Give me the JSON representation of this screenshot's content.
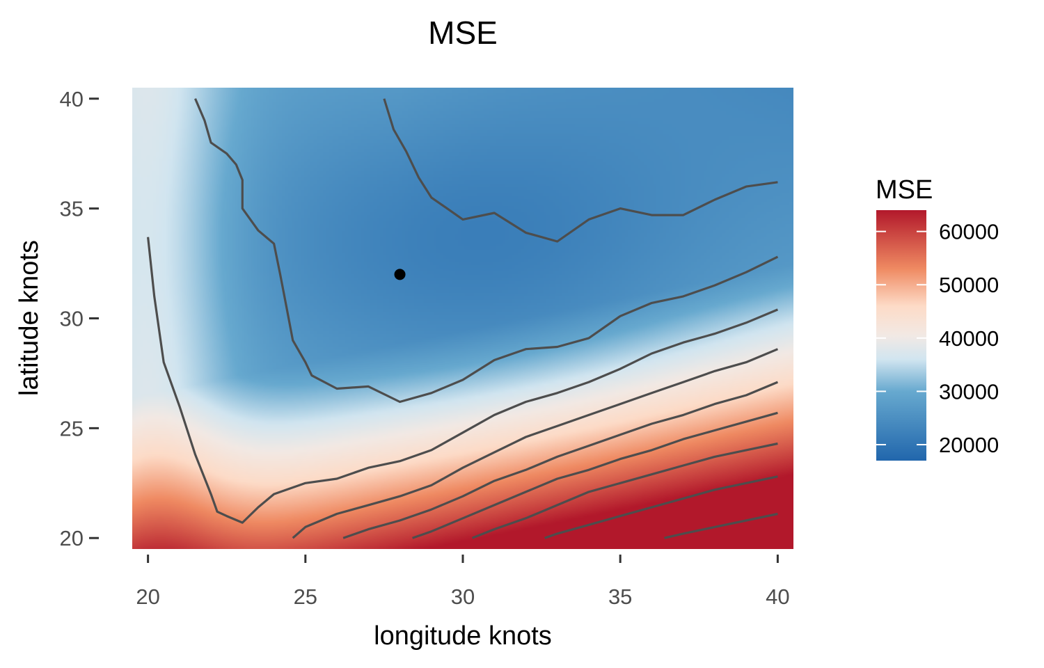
{
  "chart_data": {
    "type": "heatmap",
    "title": "MSE",
    "xlabel": "longitude knots",
    "ylabel": "latitude knots",
    "xlim": [
      19.5,
      40.5
    ],
    "ylim": [
      19.5,
      40.5
    ],
    "x_ticks": [
      20,
      25,
      30,
      35,
      40
    ],
    "y_ticks": [
      20,
      25,
      30,
      35,
      40
    ],
    "grid": false,
    "legend": {
      "title": "MSE",
      "position": "right",
      "range": [
        17000,
        64000
      ],
      "ticks": [
        20000,
        30000,
        40000,
        50000,
        60000
      ],
      "colors": [
        {
          "value": 17000,
          "color": "#2166ac"
        },
        {
          "value": 30000,
          "color": "#67a9cf"
        },
        {
          "value": 36000,
          "color": "#d1e5f0"
        },
        {
          "value": 40500,
          "color": "#f2e9e4"
        },
        {
          "value": 46000,
          "color": "#fddbc7"
        },
        {
          "value": 53000,
          "color": "#ef8a62"
        },
        {
          "value": 64000,
          "color": "#b2182b"
        }
      ]
    },
    "minimum_point": {
      "x": 28,
      "y": 32,
      "color": "#000000"
    },
    "contour_color": "#4d4d4d",
    "contours": [
      [
        [
          27.5,
          40
        ],
        [
          27.8,
          38.6
        ],
        [
          28.2,
          37.6
        ],
        [
          28.6,
          36.4
        ],
        [
          29,
          35.5
        ],
        [
          29.5,
          35
        ],
        [
          30,
          34.5
        ],
        [
          31,
          34.8
        ],
        [
          32,
          33.9
        ],
        [
          33,
          33.5
        ],
        [
          34,
          34.5
        ],
        [
          35,
          35
        ],
        [
          36,
          34.7
        ],
        [
          37,
          34.7
        ],
        [
          38,
          35.4
        ],
        [
          39,
          36
        ],
        [
          40,
          36.2
        ]
      ],
      [
        [
          21.5,
          40
        ],
        [
          21.8,
          39
        ],
        [
          22,
          38
        ],
        [
          22.5,
          37.5
        ],
        [
          22.8,
          37
        ],
        [
          23,
          36.3
        ],
        [
          23,
          35
        ],
        [
          23.5,
          34
        ],
        [
          24,
          33.4
        ],
        [
          24.2,
          32
        ],
        [
          24.4,
          30.5
        ],
        [
          24.6,
          29
        ],
        [
          25,
          28
        ],
        [
          25.2,
          27.4
        ],
        [
          26,
          26.8
        ],
        [
          27,
          26.9
        ],
        [
          28,
          26.2
        ],
        [
          29,
          26.6
        ],
        [
          30,
          27.2
        ],
        [
          31,
          28.1
        ],
        [
          32,
          28.6
        ],
        [
          33,
          28.7
        ],
        [
          34,
          29.1
        ],
        [
          35,
          30.1
        ],
        [
          36,
          30.7
        ],
        [
          37,
          31
        ],
        [
          38,
          31.5
        ],
        [
          39,
          32.1
        ],
        [
          40,
          32.8
        ]
      ],
      [
        [
          20,
          33.7
        ],
        [
          20.2,
          31
        ],
        [
          20.5,
          28
        ],
        [
          21,
          26
        ],
        [
          21.5,
          23.8
        ],
        [
          22,
          22
        ],
        [
          22.2,
          21.2
        ],
        [
          22.5,
          21
        ],
        [
          23,
          20.7
        ],
        [
          23.5,
          21.4
        ],
        [
          24,
          22
        ],
        [
          25,
          22.5
        ],
        [
          26,
          22.7
        ],
        [
          27,
          23.2
        ],
        [
          28,
          23.5
        ],
        [
          29,
          24
        ],
        [
          30,
          24.8
        ],
        [
          31,
          25.6
        ],
        [
          32,
          26.2
        ],
        [
          33,
          26.6
        ],
        [
          34,
          27.1
        ],
        [
          35,
          27.7
        ],
        [
          36,
          28.4
        ],
        [
          37,
          28.9
        ],
        [
          38,
          29.3
        ],
        [
          39,
          29.8
        ],
        [
          40,
          30.4
        ]
      ],
      [
        [
          24.6,
          20
        ],
        [
          25,
          20.5
        ],
        [
          26,
          21.1
        ],
        [
          27,
          21.5
        ],
        [
          28,
          21.9
        ],
        [
          29,
          22.4
        ],
        [
          30,
          23.2
        ],
        [
          31,
          23.9
        ],
        [
          32,
          24.6
        ],
        [
          33,
          25.1
        ],
        [
          34,
          25.6
        ],
        [
          35,
          26.1
        ],
        [
          36,
          26.6
        ],
        [
          37,
          27.1
        ],
        [
          38,
          27.6
        ],
        [
          39,
          28
        ],
        [
          40,
          28.6
        ]
      ],
      [
        [
          26.2,
          20
        ],
        [
          27,
          20.4
        ],
        [
          28,
          20.8
        ],
        [
          29,
          21.3
        ],
        [
          30,
          21.9
        ],
        [
          31,
          22.6
        ],
        [
          32,
          23.1
        ],
        [
          33,
          23.7
        ],
        [
          34,
          24.2
        ],
        [
          35,
          24.7
        ],
        [
          36,
          25.2
        ],
        [
          37,
          25.6
        ],
        [
          38,
          26.1
        ],
        [
          39,
          26.5
        ],
        [
          40,
          27.1
        ]
      ],
      [
        [
          28.4,
          20
        ],
        [
          29,
          20.3
        ],
        [
          30,
          20.9
        ],
        [
          31,
          21.5
        ],
        [
          32,
          22.1
        ],
        [
          33,
          22.7
        ],
        [
          34,
          23.1
        ],
        [
          35,
          23.6
        ],
        [
          36,
          24
        ],
        [
          37,
          24.5
        ],
        [
          38,
          24.9
        ],
        [
          39,
          25.3
        ],
        [
          40,
          25.7
        ]
      ],
      [
        [
          30.3,
          20
        ],
        [
          31,
          20.4
        ],
        [
          32,
          20.9
        ],
        [
          33,
          21.5
        ],
        [
          34,
          22.1
        ],
        [
          35,
          22.5
        ],
        [
          36,
          22.9
        ],
        [
          37,
          23.3
        ],
        [
          38,
          23.7
        ],
        [
          39,
          24
        ],
        [
          40,
          24.3
        ]
      ],
      [
        [
          32.6,
          20
        ],
        [
          33,
          20.2
        ],
        [
          34,
          20.6
        ],
        [
          35,
          21
        ],
        [
          36,
          21.4
        ],
        [
          37,
          21.8
        ],
        [
          38,
          22.2
        ],
        [
          39,
          22.5
        ],
        [
          40,
          22.8
        ]
      ],
      [
        [
          36.4,
          20
        ],
        [
          37,
          20.2
        ],
        [
          38,
          20.5
        ],
        [
          39,
          20.8
        ],
        [
          40,
          21.1
        ]
      ]
    ]
  }
}
